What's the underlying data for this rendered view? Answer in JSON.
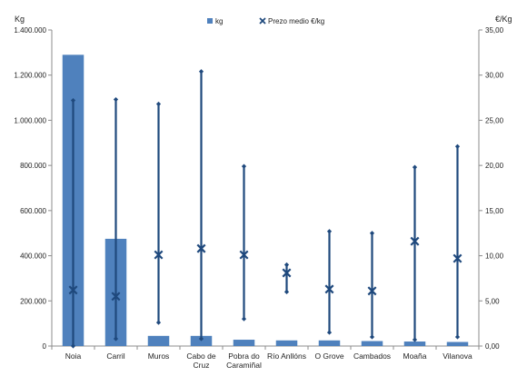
{
  "chart_data": {
    "type": "bar",
    "categories": [
      "Noia",
      "Carril",
      "Muros",
      "Cabo de Cruz",
      "Pobra do Caramiñal",
      "Río Anllóns",
      "O Grove",
      "Cambados",
      "Moaña",
      "Vilanova"
    ],
    "category_lines": [
      [
        "Noia"
      ],
      [
        "Carril"
      ],
      [
        "Muros"
      ],
      [
        "Cabo de",
        "Cruz"
      ],
      [
        "Pobra do",
        "Caramiñal"
      ],
      [
        "Río Anllóns"
      ],
      [
        "O Grove"
      ],
      [
        "Cambados"
      ],
      [
        "Moaña"
      ],
      [
        "Vilanova"
      ]
    ],
    "series": [
      {
        "name": "kg",
        "type": "bar",
        "axis": "left",
        "color": "#4F81BD",
        "values": [
          1290000,
          475000,
          45000,
          45000,
          28000,
          25000,
          25000,
          22000,
          20000,
          18000
        ]
      },
      {
        "name": "Prezo medio €/kg",
        "type": "high-low-average",
        "axis": "right",
        "color": "#1F497D",
        "marker": "x",
        "values": [
          6.2,
          5.5,
          10.1,
          10.8,
          10.1,
          8.1,
          6.3,
          6.1,
          11.6,
          9.7
        ],
        "high": [
          27.2,
          27.3,
          26.8,
          30.4,
          19.9,
          9.0,
          12.7,
          12.5,
          19.8,
          22.1
        ],
        "low": [
          0.0,
          0.8,
          2.6,
          0.8,
          3.0,
          6.0,
          1.5,
          1.0,
          0.7,
          1.0
        ]
      }
    ],
    "yleft": {
      "label": "Kg",
      "range": [
        0,
        1400000
      ],
      "ticks": [
        "0",
        "200.000",
        "400.000",
        "600.000",
        "800.000",
        "1.000.000",
        "1.200.000",
        "1.400.000"
      ]
    },
    "yright": {
      "label": "€/Kg",
      "range": [
        0,
        35
      ],
      "ticks": [
        "0,00",
        "5,00",
        "10,00",
        "15,00",
        "20,00",
        "25,00",
        "30,00",
        "35,00"
      ]
    },
    "legend": {
      "position": "top-center",
      "items": [
        "kg",
        "Prezo medio €/kg"
      ]
    },
    "grid": false
  }
}
